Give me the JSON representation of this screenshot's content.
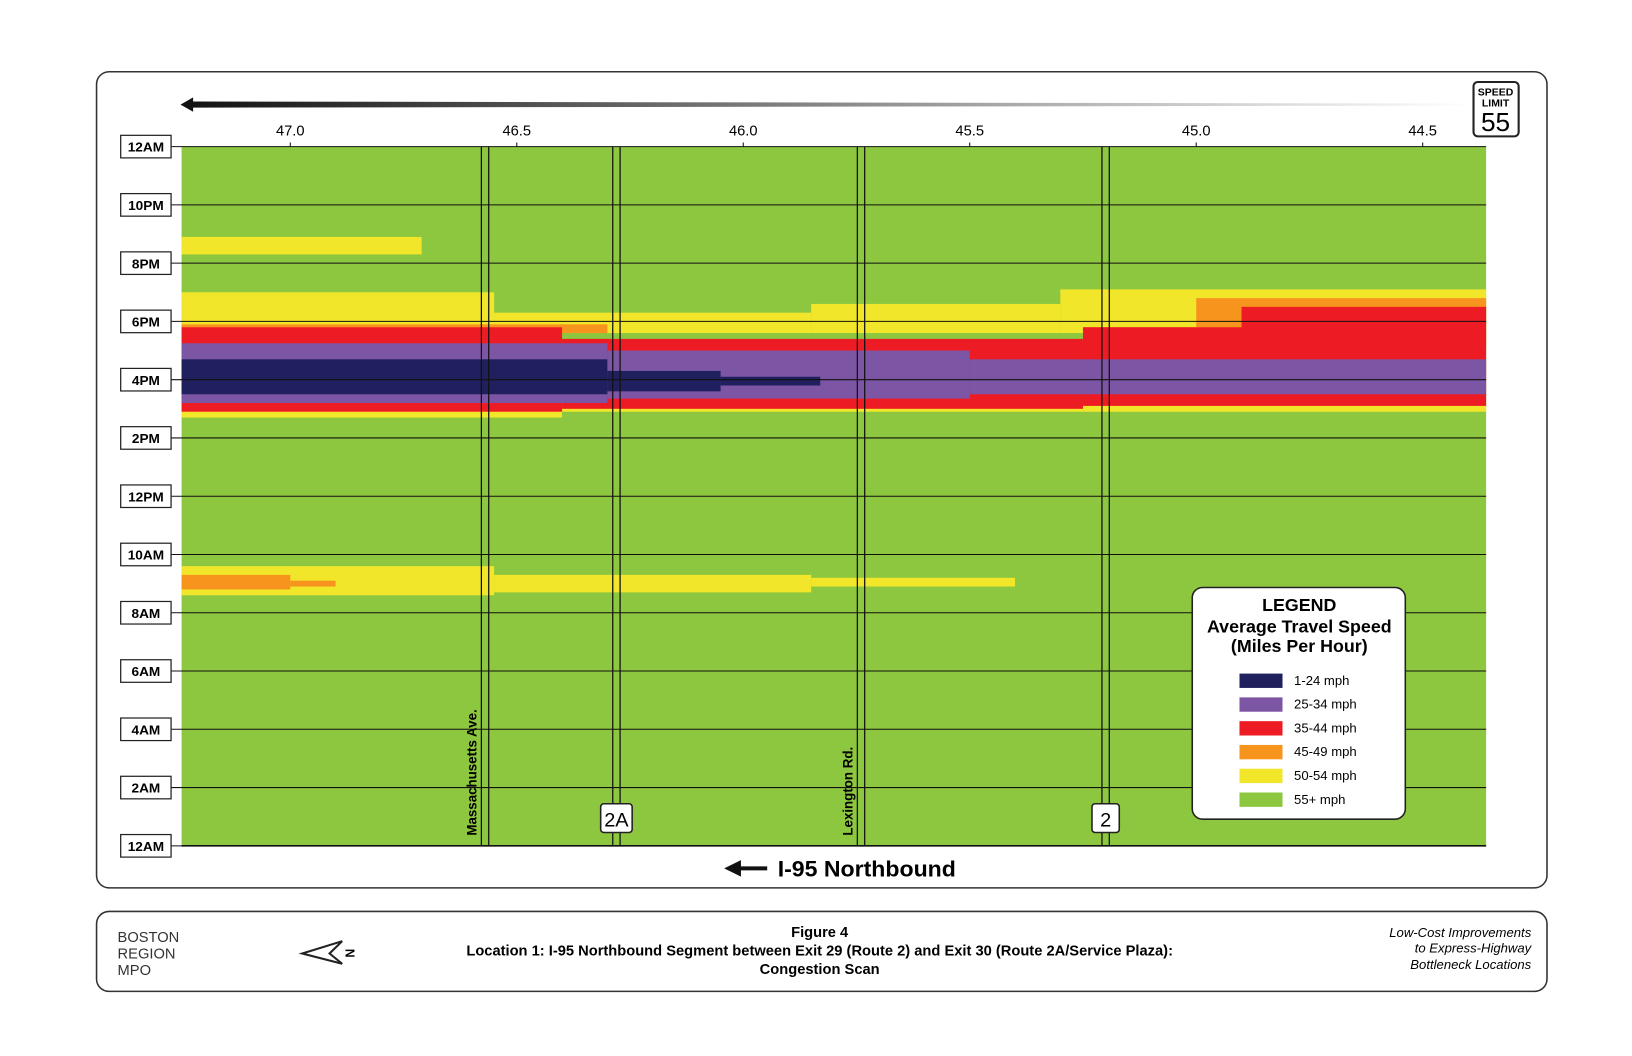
{
  "chart_data": {
    "type": "congestion-scan",
    "direction_label": "I-95 Northbound",
    "speed_sign": {
      "top": "SPEED",
      "middle": "LIMIT",
      "limit": "55"
    },
    "xlim": [
      47.24,
      44.36
    ],
    "xticks": [
      {
        "value": 47.0,
        "label": "47.0"
      },
      {
        "value": 46.5,
        "label": "46.5"
      },
      {
        "value": 46.0,
        "label": "46.0"
      },
      {
        "value": 45.5,
        "label": "45.5"
      },
      {
        "value": 45.0,
        "label": "45.0"
      },
      {
        "value": 44.5,
        "label": "44.5"
      }
    ],
    "ylim": [
      0,
      24
    ],
    "yticks": [
      {
        "value": 0,
        "label": "12AM"
      },
      {
        "value": 2,
        "label": "2AM"
      },
      {
        "value": 4,
        "label": "4AM"
      },
      {
        "value": 6,
        "label": "6AM"
      },
      {
        "value": 8,
        "label": "8AM"
      },
      {
        "value": 10,
        "label": "10AM"
      },
      {
        "value": 12,
        "label": "12PM"
      },
      {
        "value": 14,
        "label": "2PM"
      },
      {
        "value": 16,
        "label": "4PM"
      },
      {
        "value": 18,
        "label": "6PM"
      },
      {
        "value": 20,
        "label": "8PM"
      },
      {
        "value": 22,
        "label": "10PM"
      },
      {
        "value": 24,
        "label": "12AM"
      }
    ],
    "grid": true,
    "landmarks": [
      {
        "label": "Massachusetts Ave.",
        "milepost": 46.57,
        "shield": false
      },
      {
        "label": "2A",
        "milepost": 46.28,
        "shield": true
      },
      {
        "label": "Lexington Rd.",
        "milepost": 45.74,
        "shield": false
      },
      {
        "label": "2",
        "milepost": 45.2,
        "shield": true
      }
    ],
    "legend": {
      "title": "LEGEND",
      "subtitle": [
        "Average Travel Speed",
        "(Miles Per Hour)"
      ],
      "corner": "lower-right"
    },
    "classes": [
      {
        "name": "55+ mph",
        "color": "#8dc63f",
        "zones": [
          [
            0,
            24,
            47.24,
            44.36
          ]
        ]
      },
      {
        "name": "50-54 mph",
        "color": "#f2e62a",
        "zones": [
          [
            20.3,
            20.9,
            47.24,
            46.71
          ],
          [
            17.6,
            19.0,
            47.24,
            46.55
          ],
          [
            17.6,
            18.3,
            46.55,
            45.85
          ],
          [
            17.6,
            18.6,
            45.85,
            45.3
          ],
          [
            17.6,
            19.1,
            45.3,
            44.36
          ],
          [
            14.7,
            15.3,
            47.24,
            46.4
          ],
          [
            14.9,
            15.3,
            46.4,
            44.36
          ],
          [
            8.6,
            9.6,
            47.24,
            46.55
          ],
          [
            8.7,
            9.3,
            46.55,
            45.85
          ],
          [
            8.9,
            9.2,
            45.85,
            45.4
          ]
        ]
      },
      {
        "name": "45-49 mph",
        "color": "#f7941d",
        "zones": [
          [
            17.1,
            18.8,
            45.0,
            44.36
          ],
          [
            17.1,
            17.8,
            45.25,
            45.0
          ],
          [
            17.6,
            17.9,
            47.24,
            46.3
          ],
          [
            8.8,
            9.3,
            47.24,
            47.0
          ],
          [
            8.9,
            9.1,
            47.0,
            46.9
          ]
        ]
      },
      {
        "name": "35-44 mph",
        "color": "#ed1c24",
        "zones": [
          [
            14.9,
            17.8,
            47.24,
            46.4
          ],
          [
            15.0,
            17.4,
            46.4,
            45.25
          ],
          [
            15.1,
            17.8,
            45.25,
            44.9
          ],
          [
            15.1,
            18.5,
            44.9,
            44.36
          ]
        ]
      },
      {
        "name": "25-34 mph",
        "color": "#7d55a5",
        "zones": [
          [
            15.2,
            17.25,
            47.24,
            46.3
          ],
          [
            15.35,
            17.0,
            46.3,
            45.5
          ],
          [
            15.5,
            16.7,
            45.5,
            44.36
          ]
        ]
      },
      {
        "name": "1-24 mph",
        "color": "#21205e",
        "zones": [
          [
            15.5,
            16.7,
            47.24,
            46.3
          ],
          [
            15.6,
            16.3,
            46.3,
            46.05
          ],
          [
            15.8,
            16.1,
            46.05,
            45.83
          ]
        ]
      }
    ]
  },
  "footer": {
    "org": [
      "BOSTON",
      "REGION",
      "MPO"
    ],
    "figure": "Figure 4",
    "caption": [
      "Location 1: I-95 Northbound Segment between Exit 29 (Route 2) and Exit 30 (Route 2A/Service Plaza):",
      "Congestion Scan"
    ],
    "report": [
      "Low-Cost Improvements",
      "to Express-Highway",
      "Bottleneck Locations"
    ]
  }
}
